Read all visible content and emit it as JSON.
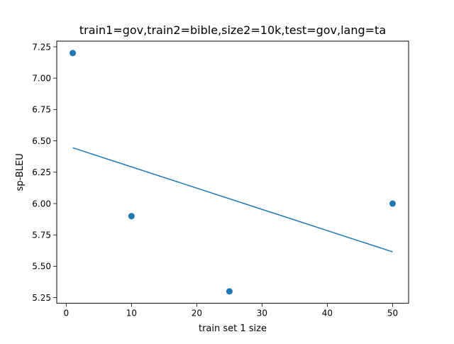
{
  "chart_data": {
    "type": "scatter",
    "title": "train1=gov,train2=bible,size2=10k,test=gov,lang=ta",
    "xlabel": "train set 1 size",
    "ylabel": "sp-BLEU",
    "xlim": [
      -1.45,
      52.45
    ],
    "ylim": [
      5.205,
      7.295
    ],
    "x_ticks": [
      0,
      10,
      20,
      30,
      40,
      50
    ],
    "y_ticks": [
      5.25,
      5.5,
      5.75,
      6.0,
      6.25,
      6.5,
      6.75,
      7.0,
      7.25
    ],
    "x_tick_labels": [
      "0",
      "10",
      "20",
      "30",
      "40",
      "50"
    ],
    "y_tick_labels": [
      "5.25",
      "5.50",
      "5.75",
      "6.00",
      "6.25",
      "6.50",
      "6.75",
      "7.00",
      "7.25"
    ],
    "series": [
      {
        "kind": "scatter",
        "x": [
          1,
          10,
          25,
          50
        ],
        "y": [
          7.2,
          5.9,
          5.3,
          6.0
        ],
        "color": "#1f77b4"
      },
      {
        "kind": "line",
        "x": [
          1,
          50
        ],
        "y": [
          6.445,
          5.615
        ],
        "color": "#1f77b4"
      }
    ],
    "grid": false,
    "legend": "none"
  }
}
